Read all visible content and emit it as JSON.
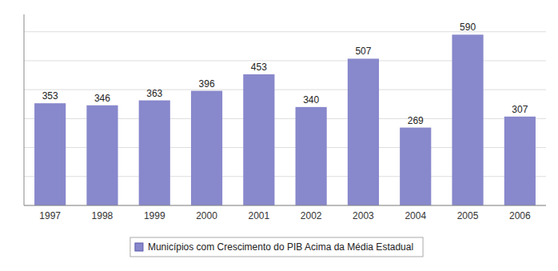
{
  "chart_data": {
    "type": "bar",
    "categories": [
      "1997",
      "1998",
      "1999",
      "2000",
      "2001",
      "2002",
      "2003",
      "2004",
      "2005",
      "2006"
    ],
    "series": [
      {
        "name": "Municípios com Crescimento do PIB Acima da Média Estadual",
        "color": "#8888cc",
        "values": [
          353,
          346,
          363,
          396,
          453,
          340,
          507,
          269,
          590,
          307
        ]
      }
    ],
    "ylim": [
      0,
      660
    ],
    "yticks": [
      0,
      100,
      200,
      300,
      400,
      500,
      600
    ],
    "grid": true,
    "legend": "bottom",
    "data_labels": true,
    "tick_labels": "x"
  }
}
